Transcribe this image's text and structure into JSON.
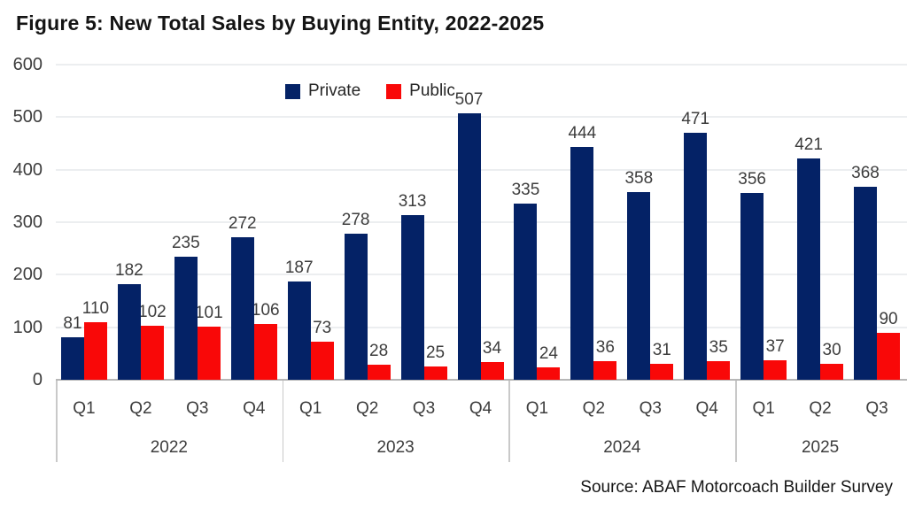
{
  "title": "Figure 5: New Total Sales by Buying Entity, 2022-2025",
  "source": "Source: ABAF Motorcoach Builder Survey",
  "colors": {
    "private": "#042266",
    "public": "#f90808",
    "gridline": "#eceef0",
    "axis": "#b7b7b7",
    "text": "#3d3d3d"
  },
  "chart_data": {
    "type": "bar",
    "title": "Figure 5: New Total Sales by Buying Entity, 2022-2025",
    "groups": [
      {
        "year": "2022",
        "quarters": [
          "Q1",
          "Q2",
          "Q3",
          "Q4"
        ]
      },
      {
        "year": "2023",
        "quarters": [
          "Q1",
          "Q2",
          "Q3",
          "Q4"
        ]
      },
      {
        "year": "2024",
        "quarters": [
          "Q1",
          "Q2",
          "Q3",
          "Q4"
        ]
      },
      {
        "year": "2025",
        "quarters": [
          "Q1",
          "Q2",
          "Q3"
        ]
      }
    ],
    "series": [
      {
        "name": "Private",
        "color": "#042266",
        "values": [
          81,
          182,
          235,
          272,
          187,
          278,
          313,
          507,
          335,
          444,
          358,
          471,
          356,
          421,
          368
        ]
      },
      {
        "name": "Public",
        "color": "#f90808",
        "values": [
          110,
          102,
          101,
          106,
          73,
          28,
          25,
          34,
          24,
          36,
          31,
          35,
          37,
          30,
          90
        ]
      }
    ],
    "xlabel": "",
    "ylabel": "",
    "ylim": [
      0,
      600
    ],
    "yticks": [
      0,
      100,
      200,
      300,
      400,
      500,
      600
    ],
    "grid": true,
    "legend_position": "top-center"
  }
}
